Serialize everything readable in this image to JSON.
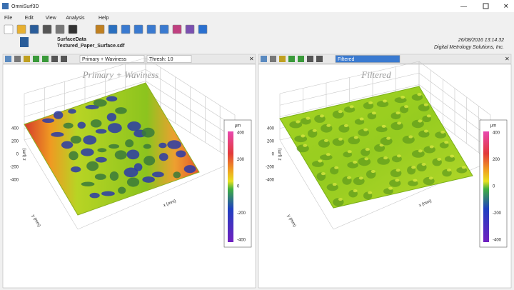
{
  "window": {
    "title": "OmniSurf3D",
    "menu": [
      "File",
      "Edit",
      "View",
      "Analysis",
      "Help"
    ]
  },
  "info": {
    "label": "SurfaceData",
    "file": "Textured_Paper_Surface.sdf",
    "date": "26/08/2016 13:14:32",
    "company": "Digital Metrology Solutions, Inc."
  },
  "panels": [
    {
      "toolbar": {
        "view": "Primary + Waviness",
        "option": "Thresh: 10"
      },
      "title": "Primary + Waviness",
      "z_label": "z (μm)",
      "x_label": "x (mm)",
      "y_label": "y (mm)",
      "z_ticks": [
        "400",
        "200",
        "0",
        "-200",
        "-400"
      ],
      "colorbar": {
        "unit": "μm",
        "ticks": [
          "400",
          "200",
          "0",
          "-200",
          "-400"
        ]
      }
    },
    {
      "toolbar": {
        "view": "Filtered"
      },
      "title": "Filtered",
      "z_label": "z (μm)",
      "x_label": "x (mm)",
      "y_label": "y (mm)",
      "z_ticks": [
        "400",
        "200",
        "0",
        "-200",
        "-400"
      ],
      "colorbar": {
        "unit": "μm",
        "ticks": [
          "400",
          "200",
          "0",
          "-200",
          "-400"
        ]
      }
    }
  ]
}
